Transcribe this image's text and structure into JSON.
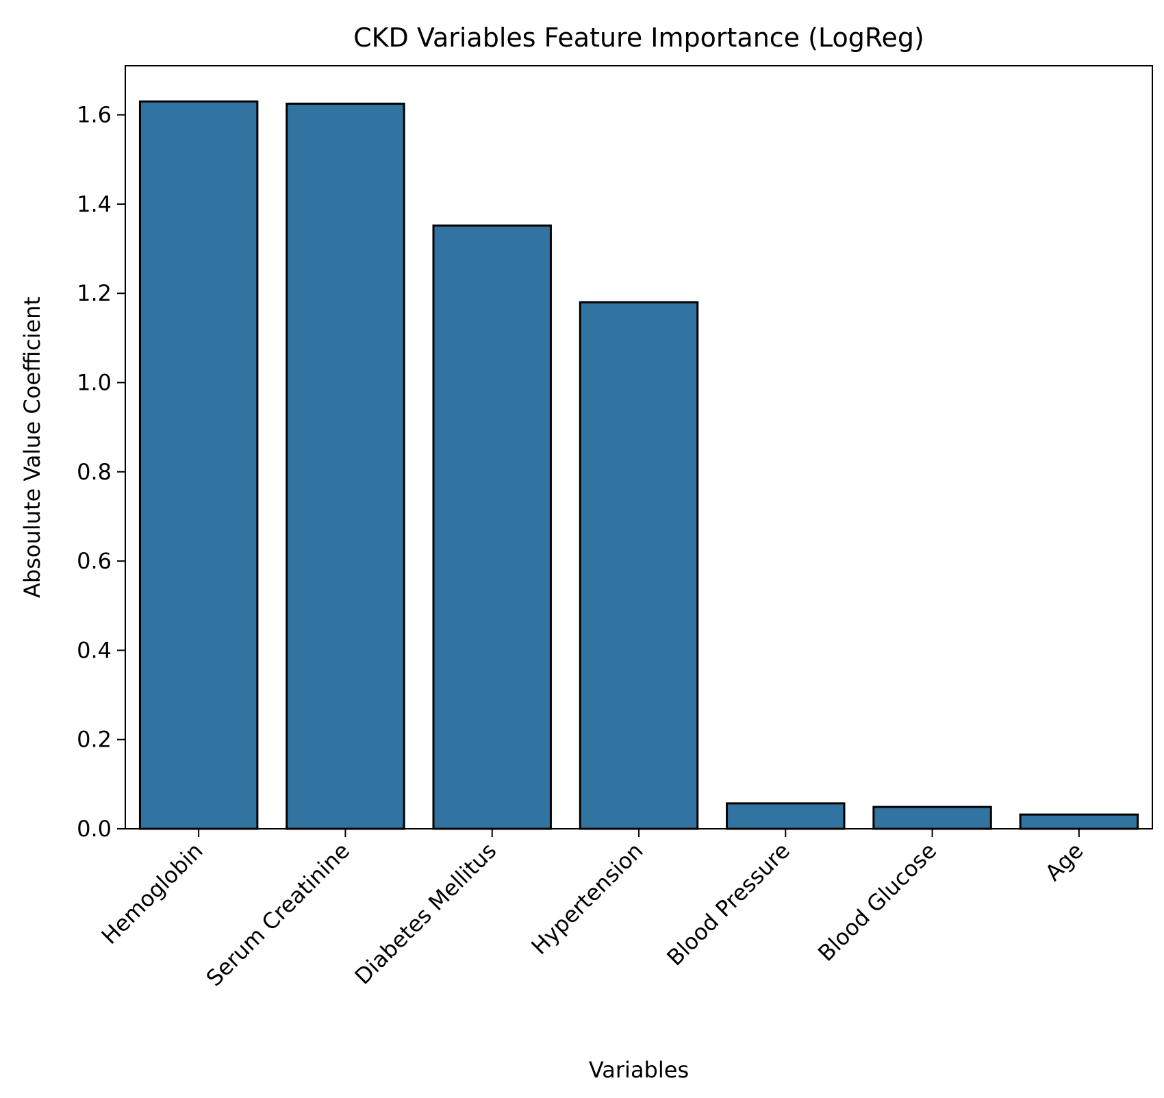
{
  "chart_data": {
    "type": "bar",
    "title": "CKD Variables Feature Importance (LogReg)",
    "xlabel": "Variables",
    "ylabel": "Absoulute Value Coefficient",
    "categories": [
      "Hemoglobin",
      "Serum Creatinine",
      "Diabetes Mellitus",
      "Hypertension",
      "Blood Pressure",
      "Blood Glucose",
      "Age"
    ],
    "values": [
      1.63,
      1.625,
      1.352,
      1.18,
      0.057,
      0.049,
      0.032
    ],
    "ylim": [
      0,
      1.71
    ],
    "yticks": [
      0.0,
      0.2,
      0.4,
      0.6,
      0.8,
      1.0,
      1.2,
      1.4,
      1.6
    ],
    "ytick_labels": [
      "0.0",
      "0.2",
      "0.4",
      "0.6",
      "0.8",
      "1.0",
      "1.2",
      "1.4",
      "1.6"
    ],
    "bar_color": "#3274a1",
    "edge_color": "#000000",
    "grid": false,
    "legend": "none"
  }
}
